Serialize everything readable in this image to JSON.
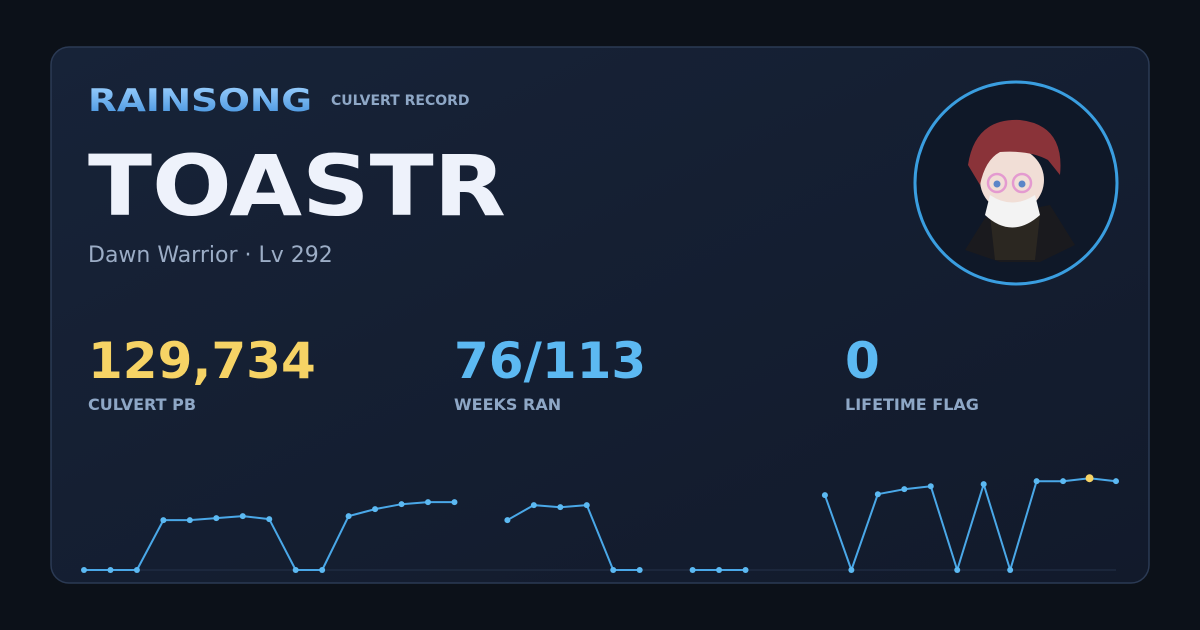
{
  "header": {
    "game": "RAINSONG",
    "record": "CULVERT RECORD"
  },
  "player": {
    "name": "TOASTR",
    "subtitle": "Dawn Warrior · Lv 292"
  },
  "stats": [
    {
      "value": "129,734",
      "label": "CULVERT PB",
      "color": "#f6d365"
    },
    {
      "value": "76/113",
      "label": "WEEKS RAN",
      "color": "#5cb9f2"
    },
    {
      "value": "0",
      "label": "LIFETIME FLAG",
      "color": "#5cb9f2"
    }
  ],
  "chart_data": {
    "type": "line",
    "color": "#4aa8e8",
    "highlight_color": "#f6d365",
    "ylim": [
      0,
      130000
    ],
    "values": [
      0,
      0,
      0,
      70500,
      70500,
      73300,
      76100,
      71900,
      0,
      0,
      76100,
      86000,
      93000,
      95900,
      95900,
      null,
      70500,
      91700,
      88800,
      91700,
      0,
      0,
      null,
      0,
      0,
      0,
      null,
      null,
      105800,
      0,
      107100,
      114200,
      118400,
      0,
      121300,
      0,
      125500,
      125500,
      129734,
      125500
    ]
  }
}
